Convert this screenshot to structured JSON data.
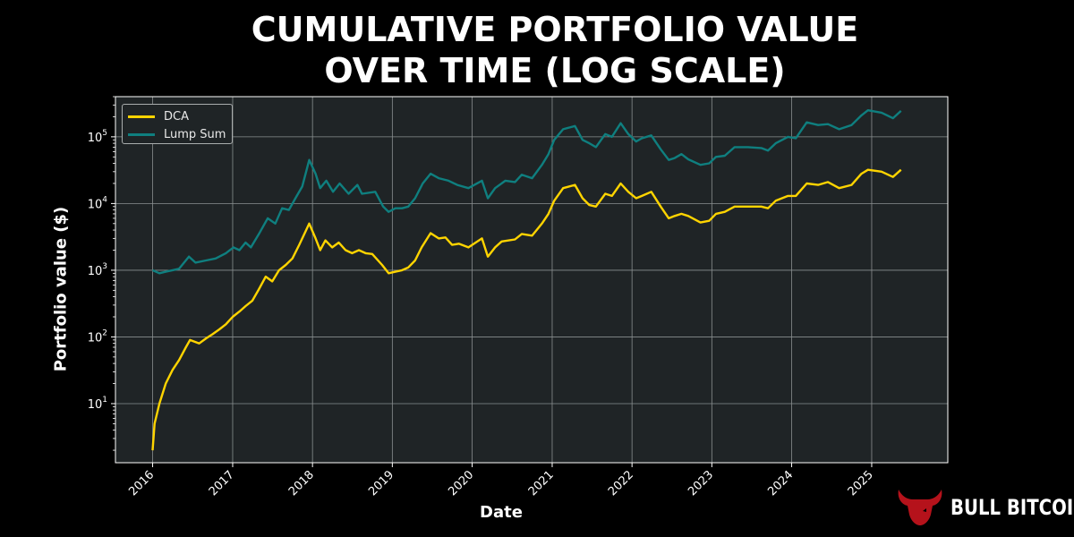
{
  "title_lines": [
    "CUMULATIVE PORTFOLIO VALUE",
    "OVER TIME (LOG SCALE)"
  ],
  "brand": {
    "name": "BULL BITCOIN",
    "icon": "bull-head-logo",
    "color": "#b5121b"
  },
  "colors": {
    "background": "#000000",
    "plot_background": "#1f2426",
    "grid": "#8a8f90"
  },
  "chart_data": {
    "type": "line",
    "title": "CUMULATIVE PORTFOLIO VALUE OVER TIME (LOG SCALE)",
    "xlabel": "Date",
    "ylabel": "Portfolio value ($)",
    "yscale": "log",
    "ylim": [
      1.3,
      400000
    ],
    "xlim": [
      "2015-07-15",
      "2025-12-15"
    ],
    "grid": true,
    "legend_position": "top-left",
    "x_ticks": [
      "2016",
      "2017",
      "2018",
      "2019",
      "2020",
      "2021",
      "2022",
      "2023",
      "2024",
      "2025"
    ],
    "y_ticks": [
      {
        "base": "10",
        "exp": "1",
        "value": 10
      },
      {
        "base": "10",
        "exp": "2",
        "value": 100
      },
      {
        "base": "10",
        "exp": "3",
        "value": 1000
      },
      {
        "base": "10",
        "exp": "4",
        "value": 10000
      },
      {
        "base": "10",
        "exp": "5",
        "value": 100000
      }
    ],
    "series": [
      {
        "name": "DCA",
        "color": "#ffd400",
        "points": [
          [
            "2016-01-01",
            2
          ],
          [
            "2016-01-10",
            5
          ],
          [
            "2016-02-01",
            10
          ],
          [
            "2016-03-01",
            20
          ],
          [
            "2016-04-01",
            32
          ],
          [
            "2016-05-01",
            45
          ],
          [
            "2016-06-01",
            70
          ],
          [
            "2016-06-20",
            90
          ],
          [
            "2016-08-01",
            80
          ],
          [
            "2016-09-01",
            95
          ],
          [
            "2016-10-01",
            110
          ],
          [
            "2016-11-01",
            130
          ],
          [
            "2016-12-01",
            155
          ],
          [
            "2017-01-01",
            200
          ],
          [
            "2017-02-01",
            240
          ],
          [
            "2017-03-01",
            290
          ],
          [
            "2017-04-01",
            350
          ],
          [
            "2017-05-01",
            520
          ],
          [
            "2017-06-01",
            800
          ],
          [
            "2017-07-01",
            680
          ],
          [
            "2017-08-01",
            1000
          ],
          [
            "2017-09-01",
            1200
          ],
          [
            "2017-10-01",
            1500
          ],
          [
            "2017-11-01",
            2400
          ],
          [
            "2017-12-17",
            5000
          ],
          [
            "2018-01-15",
            3000
          ],
          [
            "2018-02-05",
            2000
          ],
          [
            "2018-03-01",
            2800
          ],
          [
            "2018-04-01",
            2200
          ],
          [
            "2018-05-01",
            2600
          ],
          [
            "2018-06-01",
            2000
          ],
          [
            "2018-07-01",
            1800
          ],
          [
            "2018-08-01",
            2000
          ],
          [
            "2018-09-01",
            1800
          ],
          [
            "2018-10-01",
            1750
          ],
          [
            "2018-11-15",
            1200
          ],
          [
            "2018-12-15",
            900
          ],
          [
            "2019-01-15",
            950
          ],
          [
            "2019-02-15",
            1000
          ],
          [
            "2019-03-15",
            1100
          ],
          [
            "2019-04-15",
            1400
          ],
          [
            "2019-05-15",
            2200
          ],
          [
            "2019-06-25",
            3600
          ],
          [
            "2019-08-01",
            3000
          ],
          [
            "2019-09-01",
            3100
          ],
          [
            "2019-10-01",
            2400
          ],
          [
            "2019-11-01",
            2500
          ],
          [
            "2019-12-15",
            2200
          ],
          [
            "2020-02-15",
            3000
          ],
          [
            "2020-03-13",
            1600
          ],
          [
            "2020-04-15",
            2200
          ],
          [
            "2020-05-15",
            2700
          ],
          [
            "2020-07-15",
            2900
          ],
          [
            "2020-08-15",
            3500
          ],
          [
            "2020-10-01",
            3300
          ],
          [
            "2020-11-15",
            5000
          ],
          [
            "2020-12-15",
            7000
          ],
          [
            "2021-01-10",
            11000
          ],
          [
            "2021-02-20",
            17000
          ],
          [
            "2021-04-15",
            19000
          ],
          [
            "2021-05-20",
            12000
          ],
          [
            "2021-06-20",
            9500
          ],
          [
            "2021-07-20",
            9000
          ],
          [
            "2021-09-01",
            14000
          ],
          [
            "2021-10-01",
            13000
          ],
          [
            "2021-11-10",
            20000
          ],
          [
            "2021-12-15",
            15000
          ],
          [
            "2022-01-20",
            12000
          ],
          [
            "2022-02-15",
            13000
          ],
          [
            "2022-03-30",
            15000
          ],
          [
            "2022-05-12",
            9000
          ],
          [
            "2022-06-18",
            6000
          ],
          [
            "2022-07-15",
            6500
          ],
          [
            "2022-08-15",
            7000
          ],
          [
            "2022-09-15",
            6500
          ],
          [
            "2022-11-10",
            5200
          ],
          [
            "2022-12-20",
            5500
          ],
          [
            "2023-01-20",
            7000
          ],
          [
            "2023-03-01",
            7500
          ],
          [
            "2023-04-15",
            9000
          ],
          [
            "2023-06-15",
            9000
          ],
          [
            "2023-08-15",
            9000
          ],
          [
            "2023-09-15",
            8500
          ],
          [
            "2023-10-20",
            11000
          ],
          [
            "2023-12-15",
            13000
          ],
          [
            "2024-01-20",
            13000
          ],
          [
            "2024-03-10",
            20000
          ],
          [
            "2024-05-01",
            19000
          ],
          [
            "2024-06-15",
            21000
          ],
          [
            "2024-08-05",
            17000
          ],
          [
            "2024-10-01",
            19000
          ],
          [
            "2024-11-15",
            28000
          ],
          [
            "2024-12-15",
            32000
          ],
          [
            "2025-02-15",
            30000
          ],
          [
            "2025-04-08",
            25000
          ],
          [
            "2025-05-15",
            32000
          ]
        ]
      },
      {
        "name": "Lump Sum",
        "color": "#0f7f7f",
        "points": [
          [
            "2016-01-01",
            1000
          ],
          [
            "2016-02-01",
            900
          ],
          [
            "2016-03-01",
            950
          ],
          [
            "2016-04-01",
            1000
          ],
          [
            "2016-05-01",
            1050
          ],
          [
            "2016-06-15",
            1600
          ],
          [
            "2016-07-15",
            1300
          ],
          [
            "2016-09-01",
            1400
          ],
          [
            "2016-10-15",
            1500
          ],
          [
            "2016-12-01",
            1800
          ],
          [
            "2017-01-05",
            2200
          ],
          [
            "2017-02-01",
            2000
          ],
          [
            "2017-03-01",
            2600
          ],
          [
            "2017-03-25",
            2200
          ],
          [
            "2017-05-01",
            3500
          ],
          [
            "2017-06-10",
            6000
          ],
          [
            "2017-07-15",
            5000
          ],
          [
            "2017-08-15",
            8500
          ],
          [
            "2017-09-15",
            8000
          ],
          [
            "2017-10-15",
            12000
          ],
          [
            "2017-11-15",
            18000
          ],
          [
            "2017-12-17",
            45000
          ],
          [
            "2018-01-15",
            28000
          ],
          [
            "2018-02-05",
            17000
          ],
          [
            "2018-03-05",
            22000
          ],
          [
            "2018-04-05",
            15000
          ],
          [
            "2018-05-05",
            20000
          ],
          [
            "2018-06-15",
            14000
          ],
          [
            "2018-07-25",
            19000
          ],
          [
            "2018-08-15",
            14000
          ],
          [
            "2018-10-15",
            15000
          ],
          [
            "2018-11-20",
            9000
          ],
          [
            "2018-12-15",
            7500
          ],
          [
            "2019-01-15",
            8500
          ],
          [
            "2019-02-15",
            8500
          ],
          [
            "2019-03-15",
            9000
          ],
          [
            "2019-04-15",
            12000
          ],
          [
            "2019-05-20",
            20000
          ],
          [
            "2019-06-25",
            28000
          ],
          [
            "2019-08-01",
            24000
          ],
          [
            "2019-09-15",
            22000
          ],
          [
            "2019-10-25",
            19000
          ],
          [
            "2019-12-15",
            17000
          ],
          [
            "2020-02-15",
            22000
          ],
          [
            "2020-03-13",
            12000
          ],
          [
            "2020-04-15",
            17000
          ],
          [
            "2020-06-01",
            22000
          ],
          [
            "2020-07-15",
            21000
          ],
          [
            "2020-08-15",
            27000
          ],
          [
            "2020-10-01",
            24000
          ],
          [
            "2020-11-15",
            38000
          ],
          [
            "2020-12-15",
            55000
          ],
          [
            "2021-01-10",
            90000
          ],
          [
            "2021-02-20",
            130000
          ],
          [
            "2021-04-15",
            145000
          ],
          [
            "2021-05-20",
            90000
          ],
          [
            "2021-06-20",
            80000
          ],
          [
            "2021-07-20",
            70000
          ],
          [
            "2021-09-01",
            110000
          ],
          [
            "2021-10-01",
            100000
          ],
          [
            "2021-11-10",
            160000
          ],
          [
            "2021-12-15",
            110000
          ],
          [
            "2022-01-20",
            85000
          ],
          [
            "2022-02-15",
            95000
          ],
          [
            "2022-03-30",
            105000
          ],
          [
            "2022-05-12",
            65000
          ],
          [
            "2022-06-18",
            45000
          ],
          [
            "2022-07-15",
            48000
          ],
          [
            "2022-08-15",
            55000
          ],
          [
            "2022-09-15",
            46000
          ],
          [
            "2022-11-10",
            38000
          ],
          [
            "2022-12-20",
            40000
          ],
          [
            "2023-01-20",
            50000
          ],
          [
            "2023-03-01",
            52000
          ],
          [
            "2023-04-15",
            70000
          ],
          [
            "2023-06-15",
            70000
          ],
          [
            "2023-08-15",
            68000
          ],
          [
            "2023-09-15",
            62000
          ],
          [
            "2023-10-20",
            80000
          ],
          [
            "2023-12-15",
            100000
          ],
          [
            "2024-01-20",
            95000
          ],
          [
            "2024-03-10",
            165000
          ],
          [
            "2024-05-01",
            150000
          ],
          [
            "2024-06-15",
            155000
          ],
          [
            "2024-08-05",
            130000
          ],
          [
            "2024-10-01",
            150000
          ],
          [
            "2024-11-15",
            210000
          ],
          [
            "2024-12-15",
            250000
          ],
          [
            "2025-02-15",
            230000
          ],
          [
            "2025-04-08",
            190000
          ],
          [
            "2025-05-15",
            245000
          ]
        ]
      }
    ]
  }
}
